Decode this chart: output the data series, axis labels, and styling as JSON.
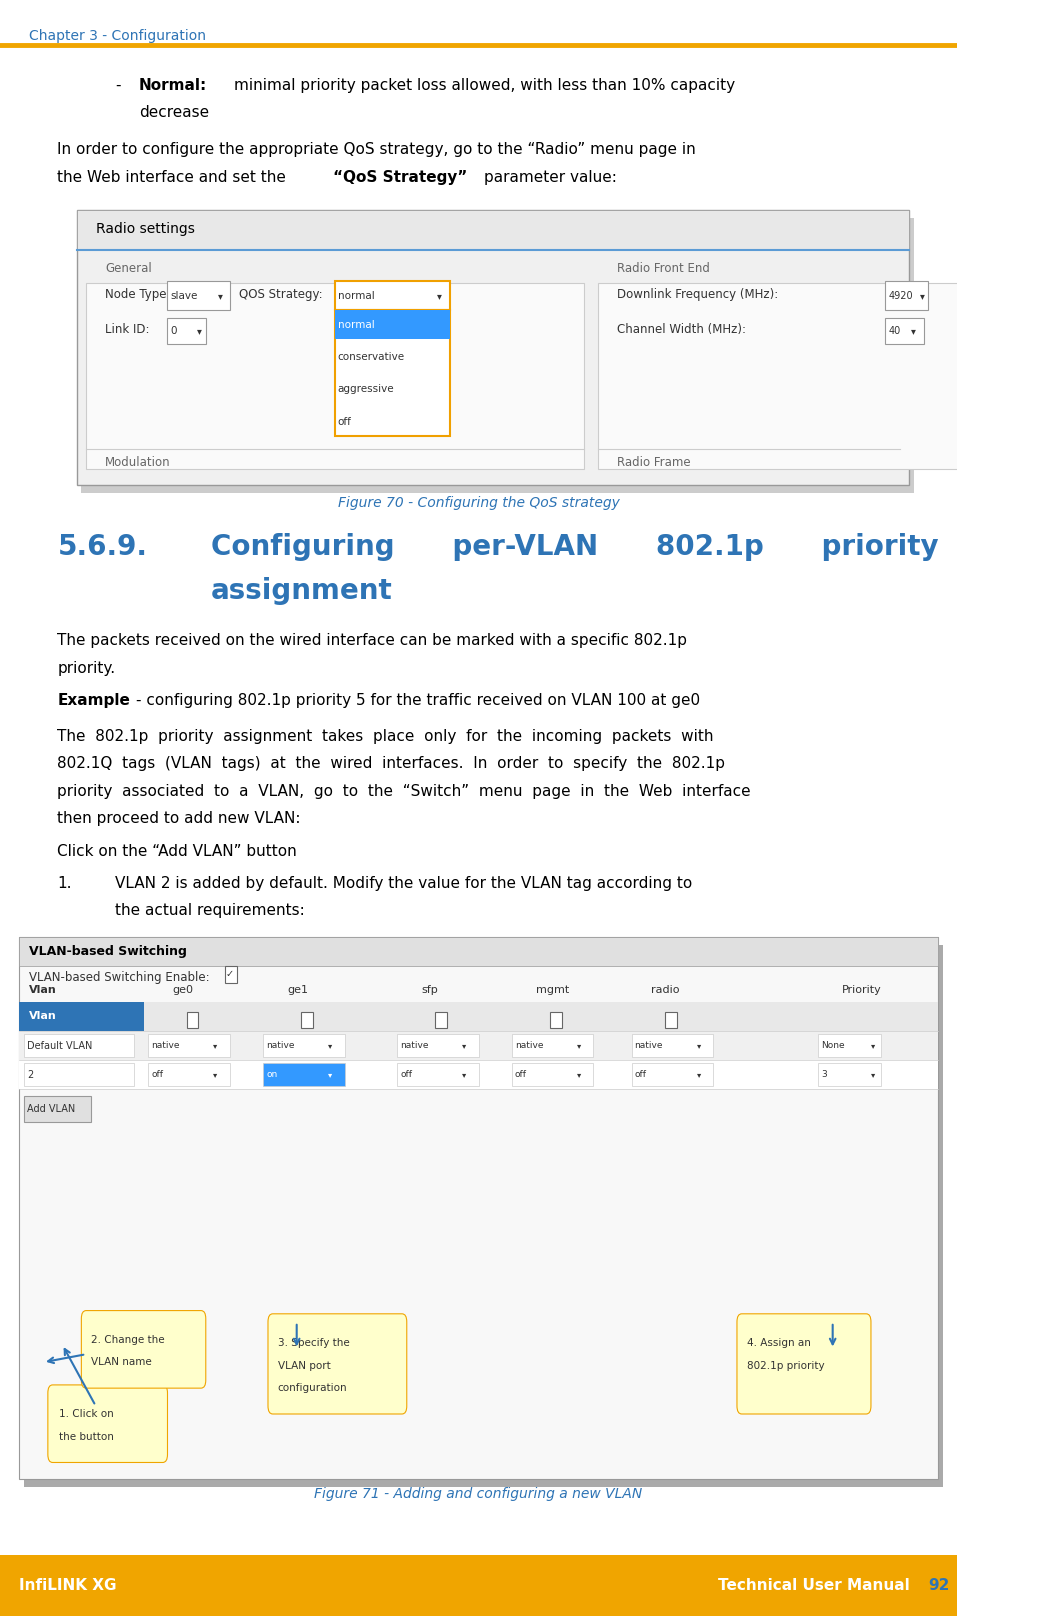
{
  "page_width": 10.5,
  "page_height": 16.16,
  "bg_color": "#ffffff",
  "header_text": "Chapter 3 - Configuration",
  "header_color": "#2e74b5",
  "header_line_color": "#f0a500",
  "footer_bg": "#f0a500",
  "footer_left": "InfiLINK XG",
  "footer_right": "Technical User Manual",
  "footer_page": "92",
  "footer_text_color": "#ffffff",
  "footer_page_color": "#2e74b5",
  "body_text_color": "#000000",
  "figure_caption_color": "#2e74b5",
  "section_heading_color": "#2e74b5",
  "bullet_text": "Normal: minimal priority packet loss allowed, with less than 10% capacity decrease",
  "para1": "In order to configure the appropriate QoS strategy, go to the “Radio” menu page in the Web interface and set the “QoS Strategy” parameter value:",
  "fig70_caption": "Figure 70 - Configuring the QoS strategy",
  "section_num": "5.6.9.",
  "section_title": "Configuring    per-VLAN    802.1p    priority assignment",
  "section_title_line1": "Configuring      per-VLAN      802.1p      priority",
  "section_title_line2": "assignment",
  "para2": "The packets received on the wired interface can be marked with a specific 802.1p priority.",
  "example_bold": "Example",
  "example_rest": " - configuring 802.1p priority 5 for the traffic received on VLAN 100 at ge0",
  "para3_line1": "The  802.1p  priority  assignment  takes  place  only  for  the  incoming  packets  with",
  "para3_line2": "802.1Q  tags  (VLAN  tags)  at  the  wired  interfaces.  In  order  to  specify  the  802.1p",
  "para3_line3": "priority  associated  to  a  VLAN,  go  to  the  “Switch”  menu  page  in  the  Web  interface",
  "para3_line4": "then proceed to add new VLAN:",
  "click_text": "Click on the “Add VLAN” button",
  "list1_num": "1.",
  "list1_text": "VLAN 2 is added by default. Modify the value for the VLAN tag according to the actual requirements:",
  "fig71_caption": "Figure 71 - Adding and configuring a new VLAN"
}
